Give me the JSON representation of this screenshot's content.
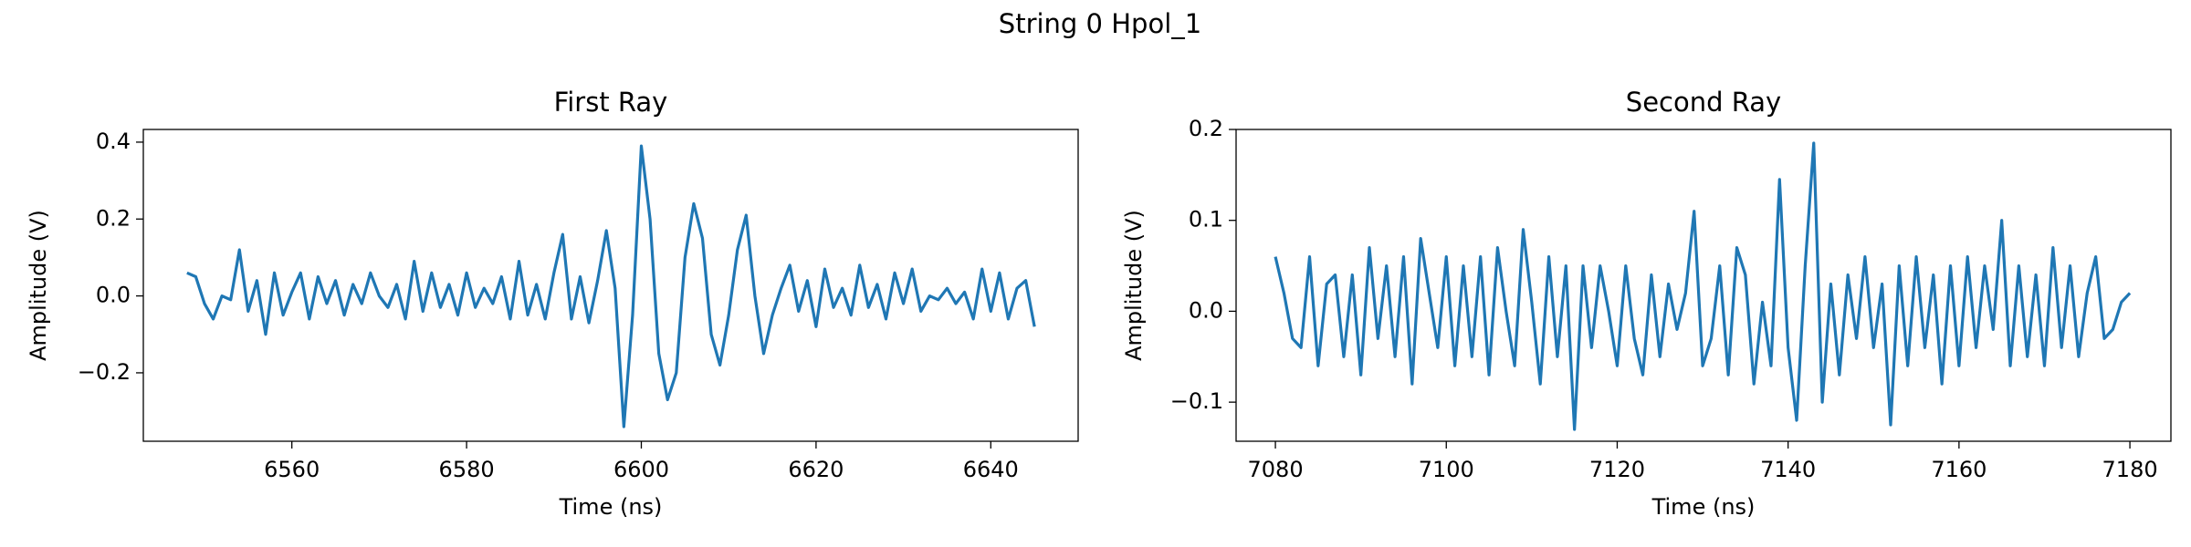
{
  "title": "String 0 Hpol_1",
  "chart_data": [
    {
      "type": "line",
      "title": "First Ray",
      "xlabel": "Time (ns)",
      "ylabel": "Amplitude (V)",
      "color": "#1f77b4",
      "xlim": [
        6543,
        6650
      ],
      "ylim": [
        -0.378,
        0.433
      ],
      "xticks": [
        6560,
        6580,
        6600,
        6620,
        6640
      ],
      "yticks": [
        {
          "value": -0.2,
          "label": "−0.2"
        },
        {
          "value": 0,
          "label": "0.0"
        },
        0.2,
        0.4
      ],
      "x": [
        6548,
        6549,
        6550,
        6551,
        6552,
        6553,
        6554,
        6555,
        6556,
        6557,
        6558,
        6559,
        6560,
        6561,
        6562,
        6563,
        6564,
        6565,
        6566,
        6567,
        6568,
        6569,
        6570,
        6571,
        6572,
        6573,
        6574,
        6575,
        6576,
        6577,
        6578,
        6579,
        6580,
        6581,
        6582,
        6583,
        6584,
        6585,
        6586,
        6587,
        6588,
        6589,
        6590,
        6591,
        6592,
        6593,
        6594,
        6595,
        6596,
        6597,
        6598,
        6599,
        6600,
        6601,
        6602,
        6603,
        6604,
        6605,
        6606,
        6607,
        6608,
        6609,
        6610,
        6611,
        6612,
        6613,
        6614,
        6615,
        6616,
        6617,
        6618,
        6619,
        6620,
        6621,
        6622,
        6623,
        6624,
        6625,
        6626,
        6627,
        6628,
        6629,
        6630,
        6631,
        6632,
        6633,
        6634,
        6635,
        6636,
        6637,
        6638,
        6639,
        6640,
        6641,
        6642,
        6643,
        6644,
        6645
      ],
      "values": [
        0.06,
        0.05,
        -0.02,
        -0.06,
        0.0,
        -0.01,
        0.12,
        -0.04,
        0.04,
        -0.1,
        0.06,
        -0.05,
        0.01,
        0.06,
        -0.06,
        0.05,
        -0.02,
        0.04,
        -0.05,
        0.03,
        -0.02,
        0.06,
        0.0,
        -0.03,
        0.03,
        -0.06,
        0.09,
        -0.04,
        0.06,
        -0.03,
        0.03,
        -0.05,
        0.06,
        -0.03,
        0.02,
        -0.02,
        0.05,
        -0.06,
        0.09,
        -0.05,
        0.03,
        -0.06,
        0.06,
        0.16,
        -0.06,
        0.05,
        -0.07,
        0.04,
        0.17,
        0.02,
        -0.34,
        -0.05,
        0.39,
        0.2,
        -0.15,
        -0.27,
        -0.2,
        0.1,
        0.24,
        0.15,
        -0.1,
        -0.18,
        -0.05,
        0.12,
        0.21,
        0.0,
        -0.15,
        -0.05,
        0.02,
        0.08,
        -0.04,
        0.04,
        -0.08,
        0.07,
        -0.03,
        0.02,
        -0.05,
        0.08,
        -0.03,
        0.03,
        -0.06,
        0.06,
        -0.02,
        0.07,
        -0.04,
        0.0,
        -0.01,
        0.02,
        -0.02,
        0.01,
        -0.06,
        0.07,
        -0.04,
        0.06,
        -0.06,
        0.02,
        0.04,
        -0.08
      ]
    },
    {
      "type": "line",
      "title": "Second Ray",
      "xlabel": "Time (ns)",
      "ylabel": "Amplitude (V)",
      "color": "#1f77b4",
      "xlim": [
        7075.4,
        7184.8
      ],
      "ylim": [
        -0.143,
        0.2
      ],
      "xticks": [
        7080,
        7100,
        7120,
        7140,
        7160,
        7180
      ],
      "yticks": [
        {
          "value": -0.1,
          "label": "−0.1"
        },
        {
          "value": 0,
          "label": "0.0"
        },
        0.1,
        0.2
      ],
      "x": [
        7080,
        7081,
        7082,
        7083,
        7084,
        7085,
        7086,
        7087,
        7088,
        7089,
        7090,
        7091,
        7092,
        7093,
        7094,
        7095,
        7096,
        7097,
        7098,
        7099,
        7100,
        7101,
        7102,
        7103,
        7104,
        7105,
        7106,
        7107,
        7108,
        7109,
        7110,
        7111,
        7112,
        7113,
        7114,
        7115,
        7116,
        7117,
        7118,
        7119,
        7120,
        7121,
        7122,
        7123,
        7124,
        7125,
        7126,
        7127,
        7128,
        7129,
        7130,
        7131,
        7132,
        7133,
        7134,
        7135,
        7136,
        7137,
        7138,
        7139,
        7140,
        7141,
        7142,
        7143,
        7144,
        7145,
        7146,
        7147,
        7148,
        7149,
        7150,
        7151,
        7152,
        7153,
        7154,
        7155,
        7156,
        7157,
        7158,
        7159,
        7160,
        7161,
        7162,
        7163,
        7164,
        7165,
        7166,
        7167,
        7168,
        7169,
        7170,
        7171,
        7172,
        7173,
        7174,
        7175,
        7176,
        7177,
        7178,
        7179,
        7180
      ],
      "values": [
        0.06,
        0.02,
        -0.03,
        -0.04,
        0.06,
        -0.06,
        0.03,
        0.04,
        -0.05,
        0.04,
        -0.07,
        0.07,
        -0.03,
        0.05,
        -0.05,
        0.06,
        -0.08,
        0.08,
        0.02,
        -0.04,
        0.06,
        -0.06,
        0.05,
        -0.05,
        0.06,
        -0.07,
        0.07,
        0.0,
        -0.06,
        0.09,
        0.01,
        -0.08,
        0.06,
        -0.05,
        0.05,
        -0.13,
        0.05,
        -0.04,
        0.05,
        0.0,
        -0.06,
        0.05,
        -0.03,
        -0.07,
        0.04,
        -0.05,
        0.03,
        -0.02,
        0.02,
        0.11,
        -0.06,
        -0.03,
        0.05,
        -0.07,
        0.07,
        0.04,
        -0.08,
        0.01,
        -0.06,
        0.145,
        -0.04,
        -0.12,
        0.05,
        0.185,
        -0.1,
        0.03,
        -0.07,
        0.04,
        -0.03,
        0.06,
        -0.04,
        0.03,
        -0.125,
        0.05,
        -0.06,
        0.06,
        -0.04,
        0.04,
        -0.08,
        0.05,
        -0.06,
        0.06,
        -0.04,
        0.05,
        -0.02,
        0.1,
        -0.06,
        0.05,
        -0.05,
        0.04,
        -0.06,
        0.07,
        -0.04,
        0.05,
        -0.05,
        0.02,
        0.06,
        -0.03,
        -0.02,
        0.01,
        0.02
      ]
    }
  ]
}
